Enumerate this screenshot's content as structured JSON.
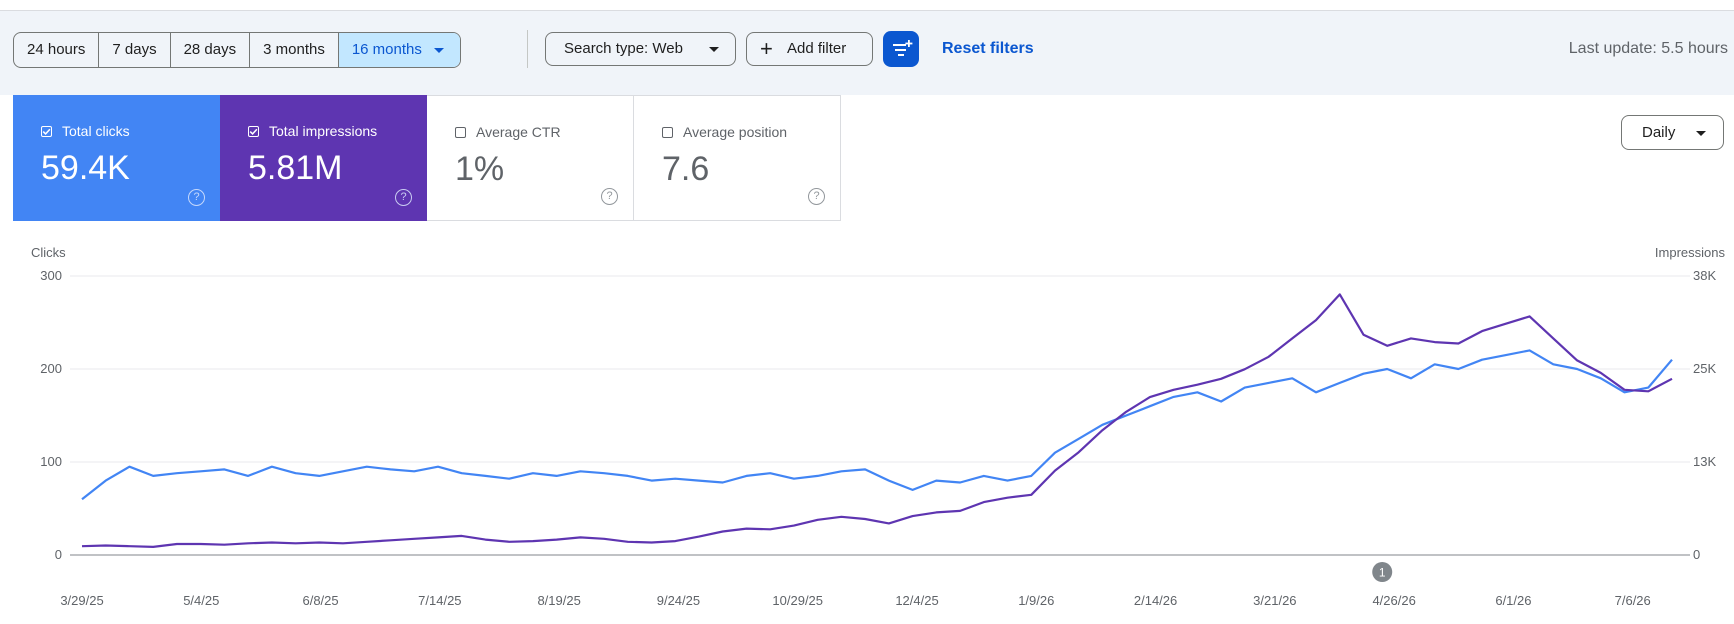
{
  "toolbar": {
    "date_ranges": [
      "24 hours",
      "7 days",
      "28 days",
      "3 months",
      "16 months"
    ],
    "active_range": "16 months",
    "search_type": "Search type: Web",
    "add_filter": "Add filter",
    "reset_filters": "Reset filters",
    "last_update": "Last update: 5.5 hours"
  },
  "metrics": [
    {
      "label": "Total clicks",
      "value": "59.4K",
      "checked": true,
      "color": "#4285f4"
    },
    {
      "label": "Total impressions",
      "value": "5.81M",
      "checked": true,
      "color": "#5e35b1"
    },
    {
      "label": "Average CTR",
      "value": "1%",
      "checked": false
    },
    {
      "label": "Average position",
      "value": "7.6",
      "checked": false
    }
  ],
  "granularity": "Daily",
  "icons": {
    "filter_button": "filter-list-icon",
    "help": "help-circle-icon",
    "add": "plus-icon",
    "dropdown": "caret-down-icon",
    "checkbox": "checkbox-icon"
  },
  "chart_data": {
    "type": "line",
    "left_axis_label": "Clicks",
    "right_axis_label": "Impressions",
    "left_ticks": [
      "0",
      "100",
      "200",
      "300"
    ],
    "right_ticks": [
      "0",
      "13K",
      "25K",
      "38K"
    ],
    "ylim_left": [
      0,
      300
    ],
    "ylim_right": [
      0,
      38000
    ],
    "x_tick_labels": [
      "3/29/25",
      "5/4/25",
      "6/8/25",
      "7/14/25",
      "8/19/25",
      "9/24/25",
      "10/29/25",
      "12/4/25",
      "1/9/26",
      "2/14/26",
      "3/21/26",
      "4/26/26",
      "6/1/26",
      "7/6/26"
    ],
    "x": [
      "3/29/25",
      "4/5/25",
      "4/12/25",
      "4/19/25",
      "4/26/25",
      "5/4/25",
      "5/11/25",
      "5/18/25",
      "5/25/25",
      "6/1/25",
      "6/8/25",
      "6/15/25",
      "6/22/25",
      "6/29/25",
      "7/7/25",
      "7/14/25",
      "7/21/25",
      "7/28/25",
      "8/4/25",
      "8/11/25",
      "8/19/25",
      "8/26/25",
      "9/2/25",
      "9/9/25",
      "9/16/25",
      "9/24/25",
      "10/1/25",
      "10/8/25",
      "10/15/25",
      "10/22/25",
      "10/29/25",
      "11/5/25",
      "11/12/25",
      "11/19/25",
      "11/26/25",
      "12/4/25",
      "12/11/25",
      "12/18/25",
      "12/25/25",
      "1/1/26",
      "1/9/26",
      "1/16/26",
      "1/23/26",
      "1/30/26",
      "2/6/26",
      "2/14/26",
      "2/21/26",
      "2/28/26",
      "3/7/26",
      "3/14/26",
      "3/21/26",
      "3/28/26",
      "4/4/26",
      "4/11/26",
      "4/18/26",
      "4/26/26",
      "5/3/26",
      "5/10/26",
      "5/17/26",
      "5/24/26",
      "6/1/26",
      "6/8/26",
      "6/15/26",
      "6/22/26",
      "6/29/26",
      "7/6/26",
      "7/13/26",
      "7/20/26"
    ],
    "series": [
      {
        "name": "Clicks",
        "axis": "left",
        "color": "#4285f4",
        "values": [
          60,
          80,
          95,
          85,
          88,
          90,
          92,
          85,
          95,
          88,
          85,
          90,
          95,
          92,
          90,
          95,
          88,
          85,
          82,
          88,
          85,
          90,
          88,
          85,
          80,
          82,
          80,
          78,
          85,
          88,
          82,
          85,
          90,
          92,
          80,
          70,
          80,
          78,
          85,
          80,
          85,
          110,
          125,
          140,
          150,
          160,
          170,
          175,
          165,
          180,
          185,
          190,
          175,
          185,
          195,
          200,
          190,
          205,
          200,
          210,
          215,
          220,
          205,
          200,
          190,
          175,
          180,
          210
        ]
      },
      {
        "name": "Impressions",
        "axis": "right",
        "color": "#5e35b1",
        "values": [
          1200,
          1300,
          1200,
          1100,
          1500,
          1500,
          1400,
          1600,
          1700,
          1600,
          1700,
          1600,
          1800,
          2000,
          2200,
          2400,
          2600,
          2100,
          1800,
          1900,
          2100,
          2400,
          2200,
          1800,
          1700,
          1900,
          2500,
          3200,
          3600,
          3500,
          4000,
          4800,
          5200,
          4900,
          4300,
          5300,
          5800,
          6000,
          7200,
          7800,
          8200,
          11500,
          14000,
          17000,
          19500,
          21500,
          22500,
          23200,
          24000,
          25300,
          27000,
          29500,
          32000,
          35500,
          30000,
          28500,
          29500,
          29000,
          28800,
          30500,
          31500,
          32500,
          29500,
          26500,
          24800,
          22500,
          22300,
          24000
        ]
      }
    ],
    "annotation": {
      "label": "1",
      "at": "4/22/26"
    },
    "grid": true,
    "legend": "none"
  }
}
